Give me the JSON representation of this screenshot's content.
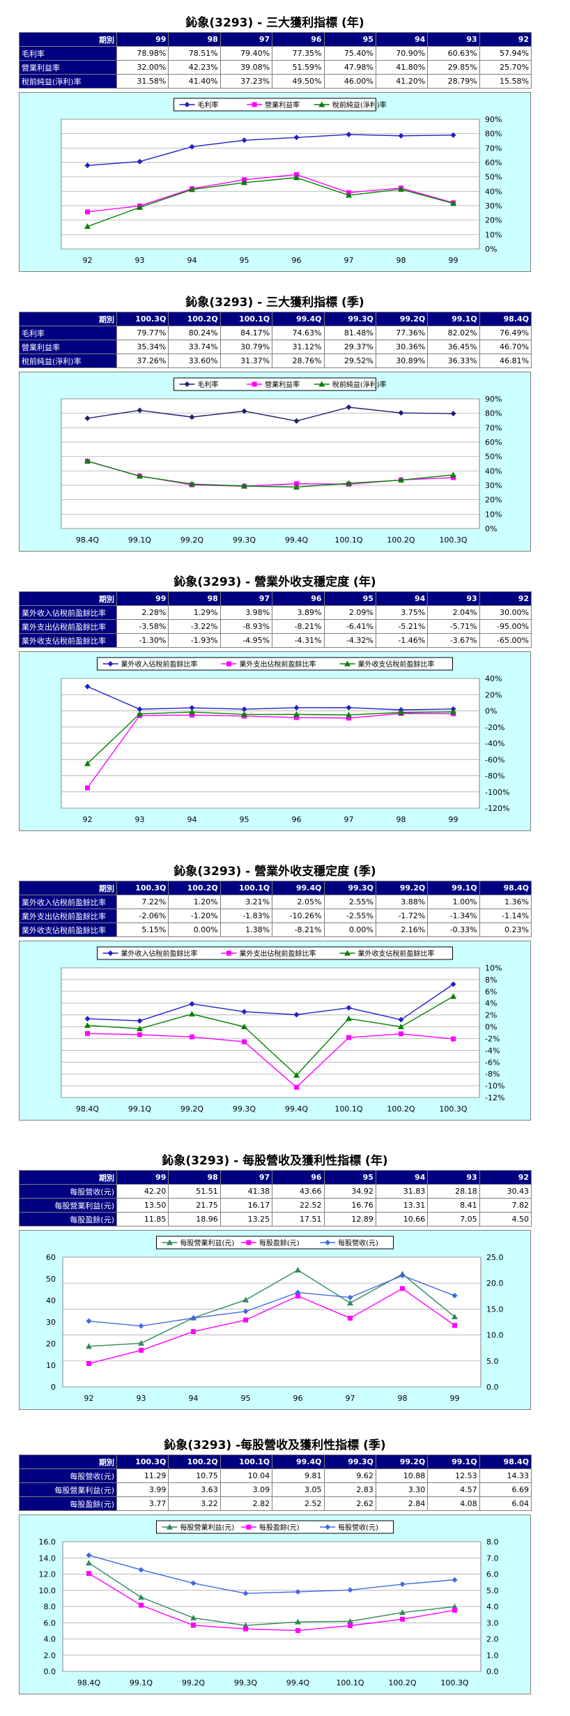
{
  "sections": [
    {
      "title": "鈊象(3293) - 三大獲利指標 (年)",
      "header_label": "期別",
      "row_label_align": "left",
      "columns": [
        "99",
        "98",
        "97",
        "96",
        "95",
        "94",
        "93",
        "92"
      ],
      "rows": [
        {
          "label": "毛利率",
          "values": [
            "78.98%",
            "78.51%",
            "79.40%",
            "77.35%",
            "75.40%",
            "70.90%",
            "60.63%",
            "57.94%"
          ]
        },
        {
          "label": "營業利益率",
          "values": [
            "32.00%",
            "42.23%",
            "39.08%",
            "51.59%",
            "47.98%",
            "41.80%",
            "29.85%",
            "25.70%"
          ]
        },
        {
          "label": "稅前純益(淨利)率",
          "values": [
            "31.58%",
            "41.40%",
            "37.23%",
            "49.50%",
            "46.00%",
            "41.20%",
            "28.79%",
            "15.58%"
          ]
        }
      ]
    },
    {
      "title": "鈊象(3293) - 三大獲利指標 (季)",
      "header_label": "期別",
      "row_label_align": "left",
      "columns": [
        "100.3Q",
        "100.2Q",
        "100.1Q",
        "99.4Q",
        "99.3Q",
        "99.2Q",
        "99.1Q",
        "98.4Q"
      ],
      "rows": [
        {
          "label": "毛利率",
          "values": [
            "79.77%",
            "80.24%",
            "84.17%",
            "74.63%",
            "81.48%",
            "77.36%",
            "82.02%",
            "76.49%"
          ]
        },
        {
          "label": "營業利益率",
          "values": [
            "35.34%",
            "33.74%",
            "30.79%",
            "31.12%",
            "29.37%",
            "30.36%",
            "36.45%",
            "46.70%"
          ]
        },
        {
          "label": "稅前純益(淨利)率",
          "values": [
            "37.26%",
            "33.60%",
            "31.37%",
            "28.76%",
            "29.52%",
            "30.89%",
            "36.33%",
            "46.81%"
          ]
        }
      ]
    },
    {
      "title": "鈊象(3293) - 營業外收支穩定度 (年)",
      "header_label": "期別",
      "row_label_align": "left",
      "columns": [
        "99",
        "98",
        "97",
        "96",
        "95",
        "94",
        "93",
        "92"
      ],
      "rows": [
        {
          "label": "業外收入佔稅前盈餘比率",
          "values": [
            "2.28%",
            "1.29%",
            "3.98%",
            "3.89%",
            "2.09%",
            "3.75%",
            "2.04%",
            "30.00%"
          ]
        },
        {
          "label": "業外支出佔稅前盈餘比率",
          "values": [
            "-3.58%",
            "-3.22%",
            "-8.93%",
            "-8.21%",
            "-6.41%",
            "-5.21%",
            "-5.71%",
            "-95.00%"
          ]
        },
        {
          "label": "業外收支佔稅前盈餘比率",
          "values": [
            "-1.30%",
            "-1.93%",
            "-4.95%",
            "-4.31%",
            "-4.32%",
            "-1.46%",
            "-3.67%",
            "-65.00%"
          ]
        }
      ]
    },
    {
      "title": "鈊象(3293) - 營業外收支穩定度 (季)",
      "header_label": "期別",
      "row_label_align": "left",
      "columns": [
        "100.3Q",
        "100.2Q",
        "100.1Q",
        "99.4Q",
        "99.3Q",
        "99.2Q",
        "99.1Q",
        "98.4Q"
      ],
      "rows": [
        {
          "label": "業外收入佔稅前盈餘比率",
          "values": [
            "7.22%",
            "1.20%",
            "3.21%",
            "2.05%",
            "2.55%",
            "3.88%",
            "1.00%",
            "1.36%"
          ]
        },
        {
          "label": "業外支出佔稅前盈餘比率",
          "values": [
            "-2.06%",
            "-1.20%",
            "-1.83%",
            "-10.26%",
            "-2.55%",
            "-1.72%",
            "-1.34%",
            "-1.14%"
          ]
        },
        {
          "label": "業外收支佔稅前盈餘比率",
          "values": [
            "5.15%",
            "0.00%",
            "1.38%",
            "-8.21%",
            "0.00%",
            "2.16%",
            "-0.33%",
            "0.23%"
          ]
        }
      ]
    },
    {
      "title": "鈊象(3293) - 每股營收及獲利性指標 (年)",
      "header_label": "期別",
      "row_label_align": "right",
      "columns": [
        "99",
        "98",
        "97",
        "96",
        "95",
        "94",
        "93",
        "92"
      ],
      "rows": [
        {
          "label": "每股營收(元)",
          "values": [
            "42.20",
            "51.51",
            "41.38",
            "43.66",
            "34.92",
            "31.83",
            "28.18",
            "30.43"
          ]
        },
        {
          "label": "每股營業利益(元)",
          "values": [
            "13.50",
            "21.75",
            "16.17",
            "22.52",
            "16.76",
            "13.31",
            "8.41",
            "7.82"
          ]
        },
        {
          "label": "每股盈餘(元)",
          "values": [
            "11.85",
            "18.96",
            "13.25",
            "17.51",
            "12.89",
            "10.66",
            "7.05",
            "4.50"
          ]
        }
      ]
    },
    {
      "title": "鈊象(3293) -每股營收及獲利性指標 (季)",
      "header_label": "期別",
      "row_label_align": "right",
      "columns": [
        "100.3Q",
        "100.2Q",
        "100.1Q",
        "99.4Q",
        "99.3Q",
        "99.2Q",
        "99.1Q",
        "98.4Q"
      ],
      "rows": [
        {
          "label": "每股營收(元)",
          "values": [
            "11.29",
            "10.75",
            "10.04",
            "9.81",
            "9.62",
            "10.88",
            "12.53",
            "14.33"
          ]
        },
        {
          "label": "每股營業利益(元)",
          "values": [
            "3.99",
            "3.63",
            "3.09",
            "3.05",
            "2.83",
            "3.30",
            "4.57",
            "6.69"
          ]
        },
        {
          "label": "每股盈餘(元)",
          "values": [
            "3.77",
            "3.22",
            "2.82",
            "2.52",
            "2.62",
            "2.84",
            "4.08",
            "6.04"
          ]
        }
      ]
    }
  ],
  "chart_data": [
    {
      "type": "line",
      "x": [
        "92",
        "93",
        "94",
        "95",
        "96",
        "97",
        "98",
        "99"
      ],
      "series": [
        {
          "name": "毛利率",
          "color": "#1f1fc8",
          "marker": "diamond",
          "axis": "left",
          "values": [
            57.94,
            60.63,
            70.9,
            75.4,
            77.35,
            79.4,
            78.51,
            78.98
          ]
        },
        {
          "name": "營業利益率",
          "color": "#ff00ff",
          "marker": "square",
          "axis": "left",
          "values": [
            25.7,
            29.85,
            41.8,
            47.98,
            51.59,
            39.08,
            42.23,
            32.0
          ]
        },
        {
          "name": "稅前純益(淨利)率",
          "color": "#008000",
          "marker": "triangle",
          "axis": "left",
          "values": [
            15.58,
            28.79,
            41.2,
            46.0,
            49.5,
            37.23,
            41.4,
            31.58
          ]
        }
      ],
      "yaxis_right": {
        "min": 0,
        "max": 90,
        "step": 10,
        "format": "%"
      },
      "legend": "top"
    },
    {
      "type": "line",
      "x": [
        "98.4Q",
        "99.1Q",
        "99.2Q",
        "99.3Q",
        "99.4Q",
        "100.1Q",
        "100.2Q",
        "100.3Q"
      ],
      "series": [
        {
          "name": "毛利率",
          "color": "#1f1f70",
          "marker": "diamond",
          "axis": "left",
          "values": [
            76.49,
            82.02,
            77.36,
            81.48,
            74.63,
            84.17,
            80.24,
            79.77
          ]
        },
        {
          "name": "營業利益率",
          "color": "#ff00ff",
          "marker": "square",
          "axis": "left",
          "values": [
            46.7,
            36.45,
            30.36,
            29.37,
            31.12,
            30.79,
            33.74,
            35.34
          ]
        },
        {
          "name": "稅前純益(淨利)率",
          "color": "#008000",
          "marker": "triangle",
          "axis": "left",
          "values": [
            46.81,
            36.33,
            30.89,
            29.52,
            28.76,
            31.37,
            33.6,
            37.26
          ]
        }
      ],
      "yaxis_right": {
        "min": 0,
        "max": 90,
        "step": 10,
        "format": "%"
      },
      "legend": "top"
    },
    {
      "type": "line",
      "x": [
        "92",
        "93",
        "94",
        "95",
        "96",
        "97",
        "98",
        "99"
      ],
      "series": [
        {
          "name": "業外收入佔稅前盈餘比率",
          "color": "#1f1fc8",
          "marker": "diamond",
          "axis": "left",
          "values": [
            30.0,
            2.04,
            3.75,
            2.09,
            3.89,
            3.98,
            1.29,
            2.28
          ]
        },
        {
          "name": "業外支出佔稅前盈餘比率",
          "color": "#ff00ff",
          "marker": "square",
          "axis": "left",
          "values": [
            -95.0,
            -5.71,
            -5.21,
            -6.41,
            -8.21,
            -8.93,
            -3.22,
            -3.58
          ]
        },
        {
          "name": "業外收支佔稅前盈餘比率",
          "color": "#008000",
          "marker": "triangle",
          "axis": "left",
          "values": [
            -65.0,
            -3.67,
            -1.46,
            -4.32,
            -4.31,
            -4.95,
            -1.93,
            -1.3
          ]
        }
      ],
      "yaxis_right": {
        "min": -120,
        "max": 40,
        "step": 20,
        "format": "%"
      },
      "legend": "top"
    },
    {
      "type": "line",
      "x": [
        "98.4Q",
        "99.1Q",
        "99.2Q",
        "99.3Q",
        "99.4Q",
        "100.1Q",
        "100.2Q",
        "100.3Q"
      ],
      "series": [
        {
          "name": "業外收入佔稅前盈餘比率",
          "color": "#1f1fc8",
          "marker": "diamond",
          "axis": "left",
          "values": [
            1.36,
            1.0,
            3.88,
            2.55,
            2.05,
            3.21,
            1.2,
            7.22
          ]
        },
        {
          "name": "業外支出佔稅前盈餘比率",
          "color": "#ff00ff",
          "marker": "square",
          "axis": "left",
          "values": [
            -1.14,
            -1.34,
            -1.72,
            -2.55,
            -10.26,
            -1.83,
            -1.2,
            -2.06
          ]
        },
        {
          "name": "業外收支佔稅前盈餘比率",
          "color": "#008000",
          "marker": "triangle",
          "axis": "left",
          "values": [
            0.23,
            -0.33,
            2.16,
            0.0,
            -8.21,
            1.38,
            0.0,
            5.15
          ]
        }
      ],
      "yaxis_right": {
        "min": -12,
        "max": 10,
        "step": 2,
        "format": "%"
      },
      "legend": "top"
    },
    {
      "type": "line",
      "x": [
        "92",
        "93",
        "94",
        "95",
        "96",
        "97",
        "98",
        "99"
      ],
      "series": [
        {
          "name": "每股營業利益(元)",
          "color": "#2e8b57",
          "marker": "triangle",
          "axis": "right",
          "values": [
            7.82,
            8.41,
            13.31,
            16.76,
            22.52,
            16.17,
            21.75,
            13.5
          ]
        },
        {
          "name": "每股盈餘(元)",
          "color": "#ff00ff",
          "marker": "square",
          "axis": "right",
          "values": [
            4.5,
            7.05,
            10.66,
            12.89,
            17.51,
            13.25,
            18.96,
            11.85
          ]
        },
        {
          "name": "每股營收(元)",
          "color": "#4169e1",
          "marker": "diamond",
          "axis": "left",
          "values": [
            30.43,
            28.18,
            31.83,
            34.92,
            43.66,
            41.38,
            51.51,
            42.2
          ]
        }
      ],
      "yaxis_left": {
        "min": 0,
        "max": 60,
        "step": 10,
        "format": "int"
      },
      "yaxis_right": {
        "min": 0,
        "max": 25,
        "step": 5,
        "format": "1"
      },
      "legend": "top"
    },
    {
      "type": "line",
      "x": [
        "98.4Q",
        "99.1Q",
        "99.2Q",
        "99.3Q",
        "99.4Q",
        "100.1Q",
        "100.2Q",
        "100.3Q"
      ],
      "series": [
        {
          "name": "每股營業利益(元)",
          "color": "#2e8b57",
          "marker": "triangle",
          "axis": "right",
          "values": [
            6.69,
            4.57,
            3.3,
            2.83,
            3.05,
            3.09,
            3.63,
            3.99
          ]
        },
        {
          "name": "每股盈餘(元)",
          "color": "#ff00ff",
          "marker": "square",
          "axis": "right",
          "values": [
            6.04,
            4.08,
            2.84,
            2.62,
            2.52,
            2.82,
            3.22,
            3.77
          ]
        },
        {
          "name": "每股營收(元)",
          "color": "#4169e1",
          "marker": "diamond",
          "axis": "left",
          "values": [
            14.33,
            12.53,
            10.88,
            9.62,
            9.81,
            10.04,
            10.75,
            11.29
          ]
        }
      ],
      "yaxis_left": {
        "min": 0,
        "max": 16,
        "step": 2,
        "format": "1"
      },
      "yaxis_right": {
        "min": 0,
        "max": 8,
        "step": 1,
        "format": "1"
      },
      "legend": "top"
    }
  ]
}
